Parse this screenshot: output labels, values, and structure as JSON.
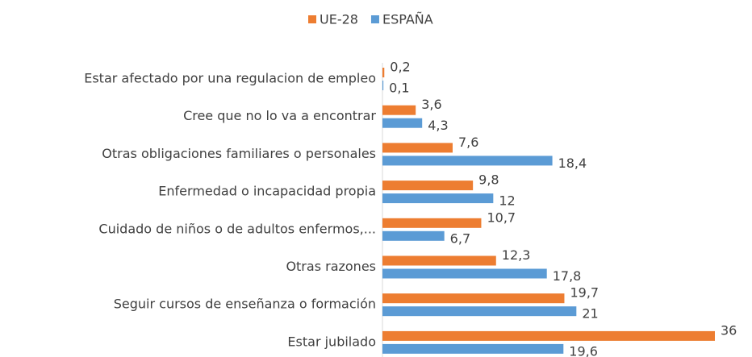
{
  "chart_data": {
    "type": "bar",
    "orientation": "horizontal",
    "categories": [
      "Estar afectado por una regulacion de empleo",
      "Cree que no lo va a encontrar",
      "Otras obligaciones familiares o personales",
      "Enfermedad o incapacidad propia ",
      "Cuidado de niños o de adultos enfermos,...",
      "Otras razones",
      "Seguir cursos de enseñanza o formación",
      "Estar jubilado"
    ],
    "series": [
      {
        "name": "UE-28",
        "color": "#ed7d31",
        "values": [
          0.2,
          3.6,
          7.6,
          9.8,
          10.7,
          12.3,
          19.7,
          36
        ],
        "value_labels": [
          "0,2",
          "3,6",
          "7,6",
          "9,8",
          "10,7",
          "12,3",
          "19,7",
          "36"
        ]
      },
      {
        "name": "ESPAÑA",
        "color": "#5b9bd5",
        "values": [
          0.1,
          4.3,
          18.4,
          12,
          6.7,
          17.8,
          21,
          19.6
        ],
        "value_labels": [
          "0,1",
          "4,3",
          "18,4",
          "12",
          "6,7",
          "17,8",
          "21",
          "19,6"
        ]
      }
    ],
    "xlim": [
      0,
      36
    ],
    "legend": "top"
  }
}
